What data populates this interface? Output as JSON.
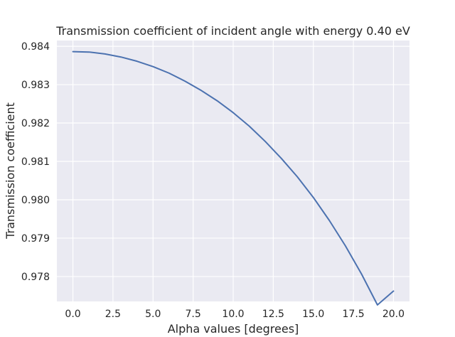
{
  "chart_data": {
    "type": "line",
    "title": "Transmission coefficient of incident angle with energy 0.40 eV",
    "xlabel": "Alpha values [degrees]",
    "ylabel": "Transmission coefficient",
    "xlim": [
      -1.0,
      21.0
    ],
    "ylim": [
      0.97735,
      0.98415
    ],
    "xticks": [
      0.0,
      2.5,
      5.0,
      7.5,
      10.0,
      12.5,
      15.0,
      17.5,
      20.0
    ],
    "xtick_labels": [
      "0.0",
      "2.5",
      "5.0",
      "7.5",
      "10.0",
      "12.5",
      "15.0",
      "17.5",
      "20.0"
    ],
    "yticks": [
      0.978,
      0.979,
      0.98,
      0.981,
      0.982,
      0.983,
      0.984
    ],
    "ytick_labels": [
      "0.978",
      "0.979",
      "0.980",
      "0.981",
      "0.982",
      "0.983",
      "0.984"
    ],
    "grid": true,
    "background": "#eaeaf2",
    "series": [
      {
        "color": "#4c72b0",
        "x": [
          0,
          1,
          2,
          3,
          4,
          5,
          6,
          7,
          8,
          9,
          10,
          11,
          12,
          13,
          14,
          15,
          16,
          17,
          18,
          19,
          20
        ],
        "y": [
          0.98386,
          0.98385,
          0.9838,
          0.98372,
          0.98361,
          0.98347,
          0.9833,
          0.98309,
          0.98285,
          0.98258,
          0.98227,
          0.98192,
          0.98152,
          0.98108,
          0.9806,
          0.98006,
          0.97946,
          0.9788,
          0.97807,
          0.97726,
          0.97762
        ]
      }
    ]
  }
}
